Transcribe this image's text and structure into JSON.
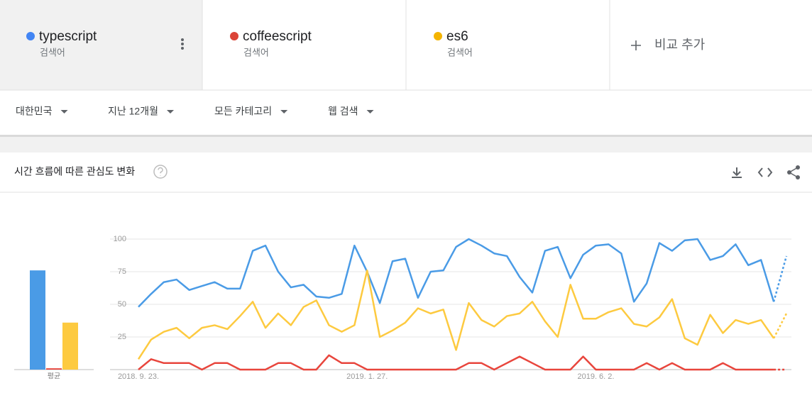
{
  "terms": [
    {
      "label": "검색어",
      "color": "#4285f4"
    },
    {
      "label": "검색어",
      "color": "#db4437"
    },
    {
      "label": "검색어",
      "color": "#f4b400"
    }
  ],
  "add_compare": "비교 추가",
  "filters": [
    "대한민국",
    "지난 12개월",
    "모든 카테고리",
    "웹 검색"
  ],
  "section_title": "시간 흐름에 따른 관심도 변화",
  "chart_data": [
    {
      "type": "bar",
      "categories": [
        "평균"
      ],
      "ylim": [
        0,
        100
      ],
      "series": [
        {
          "color": "#4a9be6",
          "values": [
            76
          ]
        },
        {
          "color": "#e8453c",
          "values": [
            1
          ]
        },
        {
          "color": "#fdca40",
          "values": [
            36
          ]
        }
      ]
    },
    {
      "type": "line",
      "ylim": [
        0,
        100
      ],
      "yticks": [
        25,
        50,
        75,
        100
      ],
      "grid": true,
      "partial_last_point": true,
      "categories": [
        "2018. 9. 23.",
        null,
        null,
        null,
        null,
        null,
        null,
        null,
        null,
        null,
        null,
        null,
        null,
        null,
        null,
        null,
        null,
        null,
        "2019. 1. 27.",
        null,
        null,
        null,
        null,
        null,
        null,
        null,
        null,
        null,
        null,
        null,
        null,
        null,
        null,
        null,
        null,
        null,
        "2019. 6. 2.",
        null,
        null,
        null,
        null,
        null,
        null,
        null,
        null,
        null,
        null,
        null,
        null,
        null,
        null,
        null
      ],
      "series": [
        {
          "name": "typescript",
          "color": "#4a9be6",
          "values": [
            48,
            58,
            67,
            69,
            61,
            64,
            67,
            62,
            62,
            91,
            95,
            75,
            63,
            65,
            56,
            55,
            58,
            95,
            75,
            51,
            83,
            85,
            55,
            75,
            76,
            94,
            100,
            95,
            89,
            87,
            71,
            59,
            91,
            94,
            70,
            88,
            95,
            96,
            89,
            52,
            66,
            97,
            91,
            99,
            100,
            84,
            87,
            96,
            80,
            84,
            52,
            87
          ]
        },
        {
          "name": "coffeescript",
          "color": "#e8453c",
          "values": [
            0,
            8,
            5,
            5,
            5,
            0,
            5,
            5,
            0,
            0,
            0,
            5,
            5,
            0,
            0,
            11,
            5,
            5,
            0,
            0,
            0,
            0,
            0,
            0,
            0,
            0,
            5,
            5,
            0,
            5,
            10,
            5,
            0,
            0,
            0,
            10,
            0,
            0,
            0,
            0,
            5,
            0,
            5,
            0,
            0,
            0,
            5,
            0,
            0,
            0,
            0,
            0
          ]
        },
        {
          "name": "es6",
          "color": "#fdca40",
          "values": [
            8,
            23,
            29,
            32,
            24,
            32,
            34,
            31,
            41,
            52,
            32,
            43,
            34,
            48,
            53,
            34,
            29,
            34,
            76,
            25,
            30,
            36,
            47,
            43,
            46,
            15,
            51,
            38,
            33,
            41,
            43,
            52,
            37,
            25,
            65,
            39,
            39,
            44,
            47,
            35,
            33,
            40,
            54,
            24,
            19,
            42,
            28,
            38,
            35,
            38,
            24,
            43
          ]
        }
      ]
    }
  ]
}
